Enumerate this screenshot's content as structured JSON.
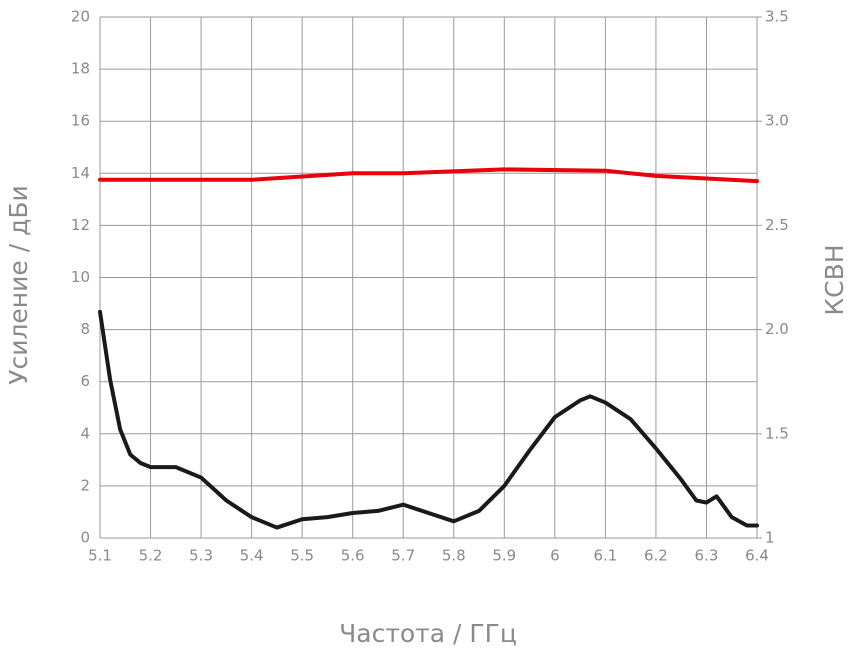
{
  "chart_data": {
    "type": "line",
    "xlabel": "Частота / ГГц",
    "ylabel": "Усиление / дБи",
    "y2label": "КСВН",
    "xlim": [
      5.1,
      6.4
    ],
    "xticks": [
      5.1,
      5.2,
      5.3,
      5.4,
      5.5,
      5.6,
      5.7,
      5.8,
      5.9,
      6,
      6.1,
      6.2,
      6.3,
      6.4
    ],
    "ylim": [
      0,
      20
    ],
    "yticks": [
      0,
      2,
      4,
      6,
      8,
      10,
      12,
      14,
      16,
      18,
      20
    ],
    "y2lim": [
      1,
      3.5
    ],
    "y2ticks": [
      1,
      {
        "value": 1.5,
        "label": "1.5"
      },
      {
        "value": 2,
        "label": "2.0"
      },
      2.5,
      {
        "value": 3,
        "label": "3.0"
      },
      3.5
    ],
    "grid": true,
    "series": [
      {
        "color": "#e8000b",
        "x": [
          5.1,
          5.4,
          5.6,
          5.7,
          5.9,
          6.1,
          6.2,
          6.4
        ],
        "values": [
          13.75,
          13.75,
          14.0,
          14.0,
          14.15,
          14.1,
          13.9,
          13.7
        ]
      },
      {
        "color": "#1a1a1a",
        "axis": "y2",
        "x": [
          5.1,
          5.12,
          5.14,
          5.16,
          5.18,
          5.2,
          5.25,
          5.3,
          5.35,
          5.4,
          5.45,
          5.5,
          5.55,
          5.6,
          5.65,
          5.7,
          5.75,
          5.8,
          5.85,
          5.9,
          5.95,
          6.0,
          6.05,
          6.07,
          6.1,
          6.15,
          6.2,
          6.25,
          6.28,
          6.3,
          6.32,
          6.35,
          6.38,
          6.4
        ],
        "values": [
          2.085,
          1.76,
          1.52,
          1.4,
          1.36,
          1.34,
          1.34,
          1.29,
          1.18,
          1.1,
          1.05,
          1.09,
          1.1,
          1.12,
          1.13,
          1.16,
          1.12,
          1.08,
          1.13,
          1.25,
          1.42,
          1.58,
          1.66,
          1.68,
          1.65,
          1.57,
          1.43,
          1.28,
          1.18,
          1.17,
          1.2,
          1.1,
          1.06,
          1.06
        ]
      }
    ]
  }
}
